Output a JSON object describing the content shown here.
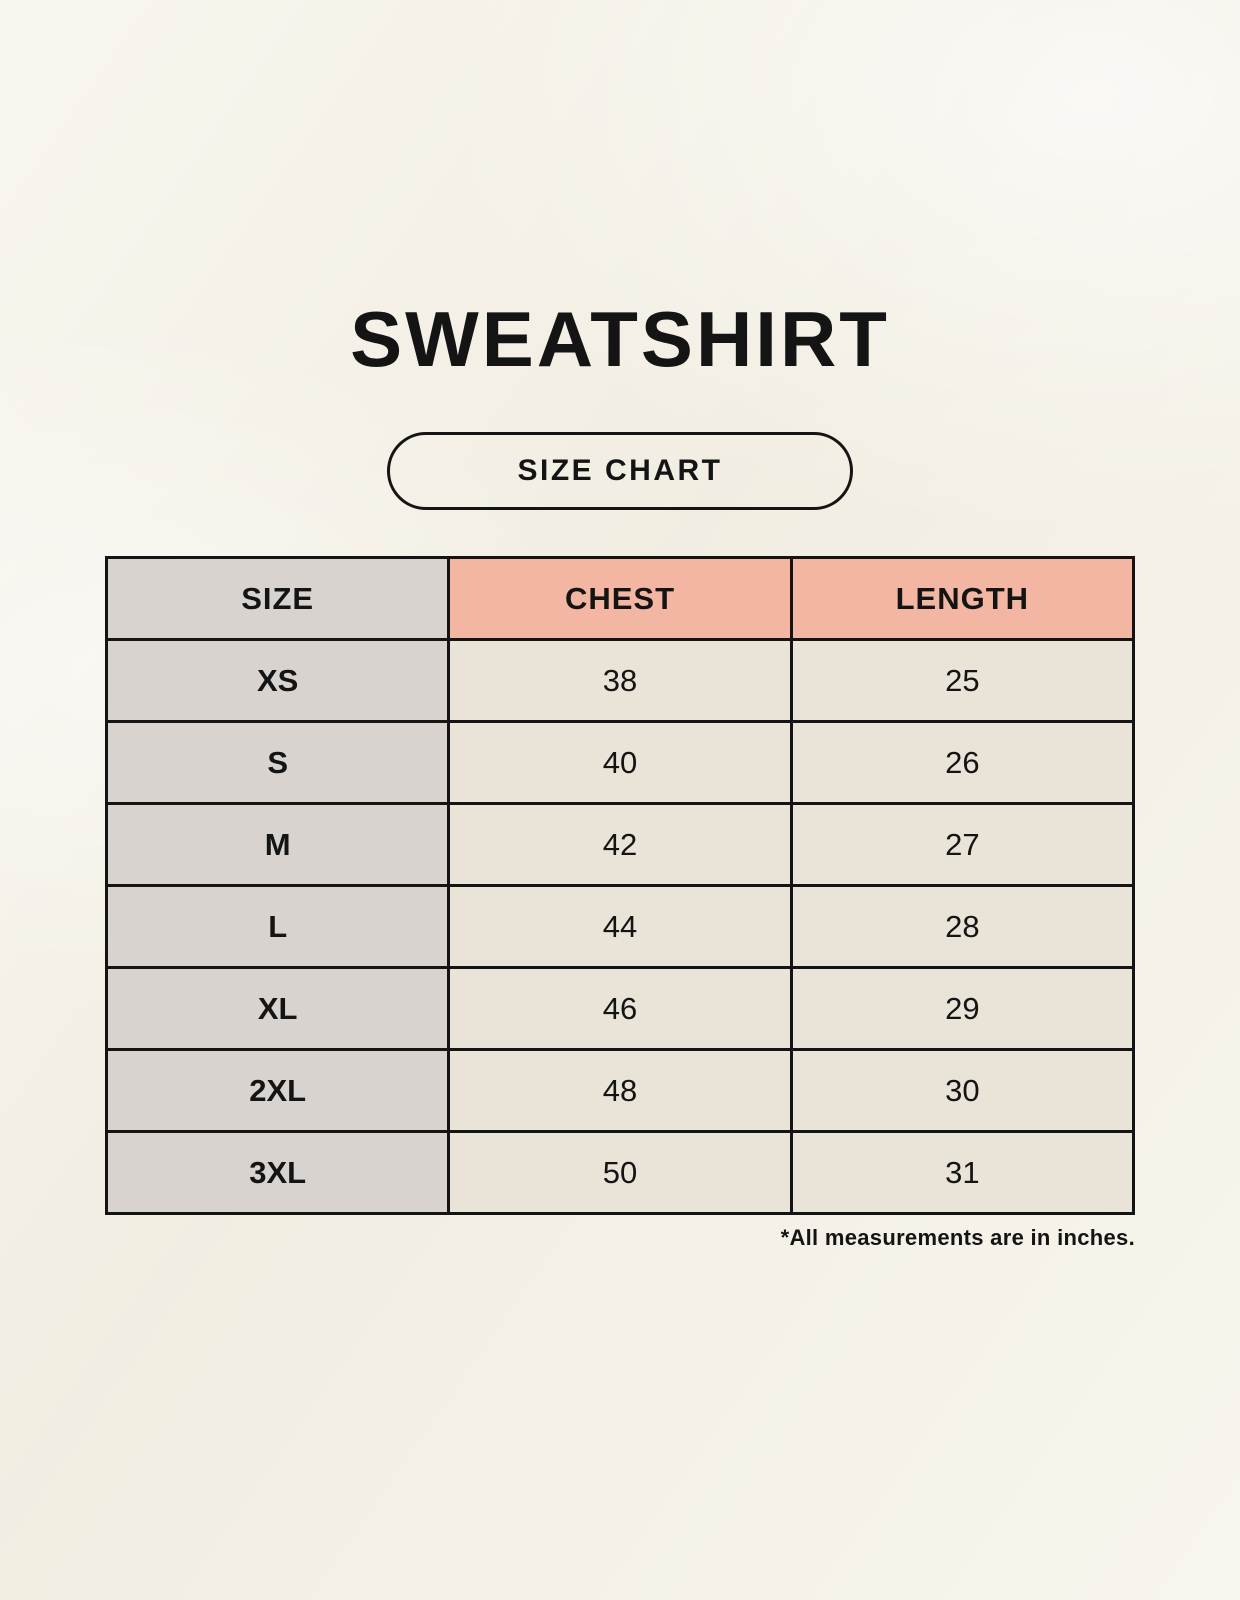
{
  "chart_data": {
    "type": "table",
    "title": "SWEATSHIRT",
    "subtitle": "SIZE CHART",
    "columns": [
      "SIZE",
      "CHEST",
      "LENGTH"
    ],
    "rows": [
      [
        "XS",
        38,
        25
      ],
      [
        "S",
        40,
        26
      ],
      [
        "M",
        42,
        27
      ],
      [
        "L",
        44,
        28
      ],
      [
        "XL",
        46,
        29
      ],
      [
        "2XL",
        48,
        30
      ],
      [
        "3XL",
        50,
        31
      ]
    ],
    "note": "*All measurements are in inches."
  },
  "colors": {
    "page_background": "#f5f1e7",
    "size_column_bg": "#d9d3d0",
    "accent_header_bg": "#f2b6a2",
    "cell_bg": "#eae3d7",
    "border": "#141414",
    "text": "#141414"
  }
}
